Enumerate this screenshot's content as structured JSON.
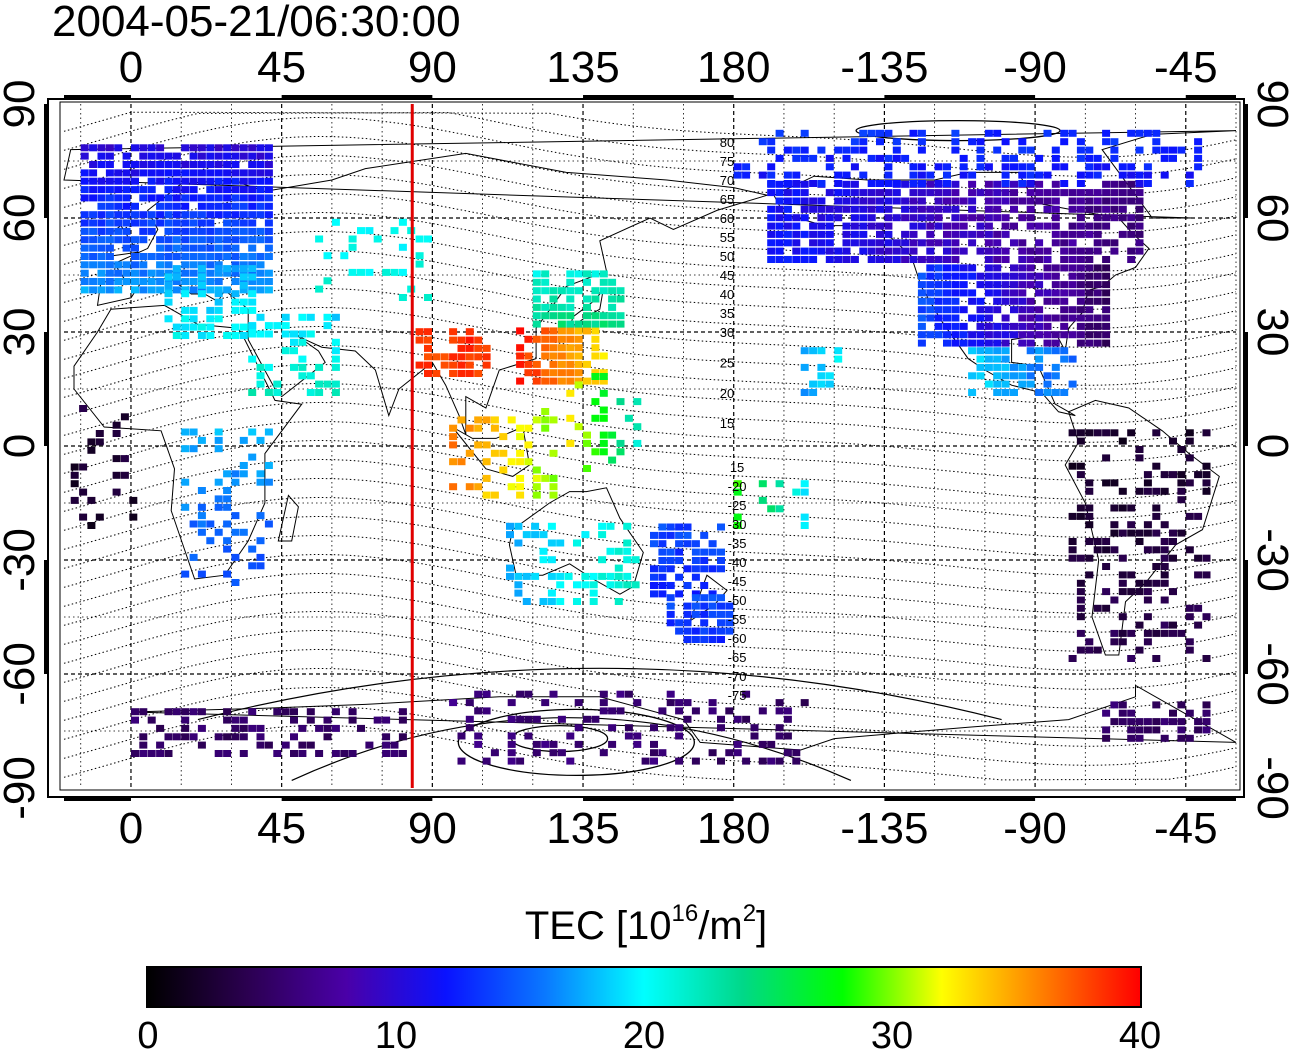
{
  "timestamp": "2004-05-21/06:30:00",
  "map": {
    "lon_ticks": [
      "0",
      "45",
      "90",
      "135",
      "180",
      "-135",
      "-90",
      "-45"
    ],
    "lat_ticks": [
      "90",
      "60",
      "30",
      "0",
      "-30",
      "-60",
      "-90"
    ],
    "contour_labels_north": [
      "80",
      "75",
      "70",
      "65",
      "60",
      "55",
      "50",
      "45",
      "40",
      "35",
      "30",
      "25",
      "20",
      "15"
    ],
    "contour_labels_south": [
      "15",
      "-20",
      "-25",
      "-30",
      "-35",
      "-40",
      "-45",
      "-50",
      "-55",
      "-60",
      "-65",
      "-70",
      "-75"
    ],
    "terminator_lon": 84,
    "colors": {
      "terminator": "#e00000",
      "frame": "#000000"
    }
  },
  "colorbar": {
    "title": "TEC  [10",
    "title_exp": "16",
    "title_unit": "/m",
    "title_unit_exp": "2",
    "title_close": "]",
    "min": 0,
    "max": 40,
    "tick_labels": [
      "0",
      "10",
      "20",
      "30",
      "40"
    ],
    "colormap": [
      "#000000",
      "#2b0050",
      "#4a00a8",
      "#0a12ff",
      "#0a78ff",
      "#00ffff",
      "#00d888",
      "#00ff00",
      "#ffff00",
      "#ff8000",
      "#ff0000"
    ]
  }
}
